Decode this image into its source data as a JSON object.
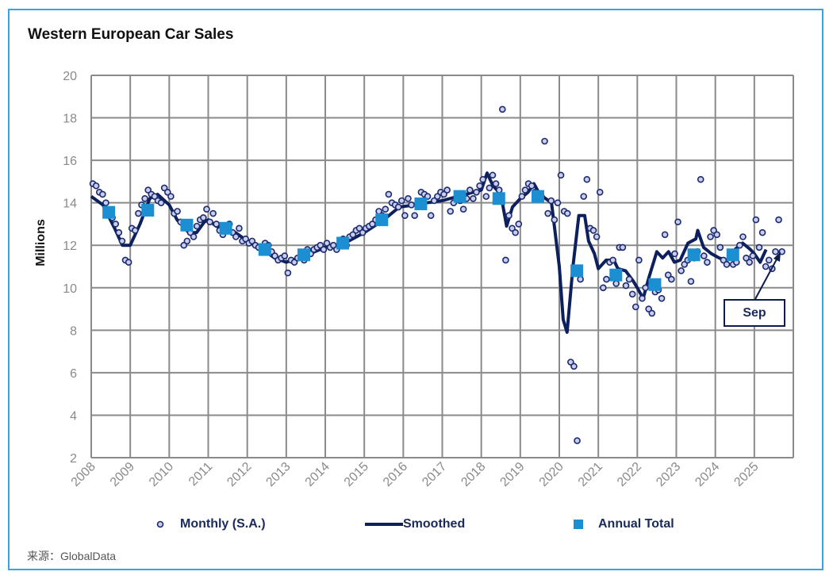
{
  "chart_data": {
    "type": "line",
    "title": "Western European Car Sales",
    "ylabel": "Millions",
    "xlabel": "",
    "ylim": [
      2,
      20
    ],
    "yticks": [
      2,
      4,
      6,
      8,
      10,
      12,
      14,
      16,
      18,
      20
    ],
    "xlim": [
      2008,
      2026
    ],
    "xticks": [
      "2008",
      "2009",
      "2010",
      "2011",
      "2012",
      "2013",
      "2014",
      "2015",
      "2016",
      "2017",
      "2018",
      "2019",
      "2020",
      "2021",
      "2022",
      "2023",
      "2024",
      "2025"
    ],
    "grid": true,
    "legend_placement": "bottom",
    "annotation": "Sep",
    "source": "来源：GlobalData",
    "colors": {
      "monthly": "#1b2a6b",
      "smoothed": "#0d1f5c",
      "annual": "#1b8fd2",
      "frame": "#3ba3dc",
      "grid": "#8a8a8a"
    },
    "series": [
      {
        "name": "Monthly (S.A.)",
        "kind": "scatter",
        "start_year": 2008,
        "values_by_year": [
          [
            14.9,
            14.8,
            14.5,
            14.4,
            14.0,
            13.6,
            13.3,
            13.0,
            12.6,
            12.2,
            11.3,
            11.2
          ],
          [
            12.8,
            12.7,
            13.5,
            13.9,
            14.2,
            14.6,
            14.4,
            14.3,
            14.1,
            14.0,
            14.7,
            14.5
          ],
          [
            14.3,
            13.5,
            13.6,
            13.1,
            12.0,
            12.2,
            12.6,
            12.4,
            12.9,
            13.2,
            13.3,
            13.7
          ],
          [
            13.1,
            13.5,
            13.0,
            12.7,
            12.5,
            12.8,
            13.0,
            12.6,
            12.4,
            12.8,
            12.2,
            12.3
          ],
          [
            12.1,
            12.2,
            12.0,
            11.9,
            11.9,
            12.1,
            12.0,
            11.7,
            11.5,
            11.3,
            11.4,
            11.5
          ],
          [
            10.7,
            11.3,
            11.2,
            11.4,
            11.6,
            11.3,
            11.8,
            11.6,
            11.8,
            11.9,
            12.0,
            11.8
          ],
          [
            12.1,
            11.9,
            12.0,
            11.8,
            12.1,
            12.3,
            12.0,
            12.4,
            12.5,
            12.7,
            12.8,
            12.6
          ],
          [
            12.8,
            12.9,
            13.0,
            13.2,
            13.6,
            13.4,
            13.7,
            14.4,
            14.0,
            13.9,
            13.8,
            14.1
          ],
          [
            13.4,
            14.2,
            13.9,
            13.4,
            14.0,
            14.5,
            14.4,
            14.3,
            13.4,
            14.1,
            14.3,
            14.5
          ],
          [
            14.4,
            14.6,
            13.6,
            14.0,
            14.3,
            14.1,
            13.7,
            14.2,
            14.6,
            14.2,
            14.5,
            14.8
          ],
          [
            15.1,
            14.3,
            14.7,
            15.3,
            14.9,
            14.6,
            18.4,
            11.3,
            13.4,
            12.8,
            12.6,
            13.0
          ],
          [
            14.3,
            14.6,
            14.9,
            14.8,
            14.5,
            14.2,
            14.3,
            16.9,
            13.5,
            14.1,
            13.2,
            14.0
          ],
          [
            15.3,
            13.6,
            13.5,
            6.5,
            6.3,
            2.8,
            10.4,
            14.3,
            15.1,
            12.8,
            12.7,
            12.4
          ],
          [
            14.5,
            10.0,
            10.4,
            11.2,
            11.3,
            10.2,
            11.9,
            11.9,
            10.1,
            10.4,
            9.7,
            9.1
          ],
          [
            11.3,
            9.5,
            10.0,
            9.0,
            8.8,
            9.8,
            9.9,
            9.5,
            12.5,
            10.6,
            10.4,
            11.6
          ],
          [
            13.1,
            10.8,
            11.1,
            11.3,
            10.3,
            11.4,
            11.7,
            15.1,
            11.5,
            11.2,
            12.4,
            12.7
          ],
          [
            12.5,
            11.9,
            11.3,
            11.1,
            11.5,
            11.1,
            11.2,
            12.0,
            12.4,
            11.4,
            11.2,
            11.5
          ],
          [
            13.2,
            11.9,
            12.6,
            11.0,
            11.3,
            10.9,
            11.7,
            13.2,
            11.7
          ]
        ]
      },
      {
        "name": "Smoothed",
        "kind": "line",
        "points": [
          [
            2008.0,
            14.3
          ],
          [
            2008.3,
            13.9
          ],
          [
            2008.6,
            12.8
          ],
          [
            2008.8,
            12.0
          ],
          [
            2009.0,
            12.0
          ],
          [
            2009.25,
            13.0
          ],
          [
            2009.5,
            14.2
          ],
          [
            2009.7,
            14.4
          ],
          [
            2010.0,
            13.9
          ],
          [
            2010.2,
            13.2
          ],
          [
            2010.5,
            12.6
          ],
          [
            2010.7,
            12.6
          ],
          [
            2010.9,
            13.1
          ],
          [
            2011.0,
            13.2
          ],
          [
            2011.2,
            12.9
          ],
          [
            2011.4,
            12.8
          ],
          [
            2011.7,
            12.6
          ],
          [
            2012.0,
            12.2
          ],
          [
            2012.4,
            11.8
          ],
          [
            2012.7,
            11.4
          ],
          [
            2013.0,
            11.2
          ],
          [
            2013.3,
            11.4
          ],
          [
            2013.6,
            11.6
          ],
          [
            2014.0,
            11.9
          ],
          [
            2014.5,
            12.1
          ],
          [
            2015.0,
            12.6
          ],
          [
            2015.5,
            13.2
          ],
          [
            2015.9,
            13.8
          ],
          [
            2016.3,
            13.9
          ],
          [
            2016.6,
            14.0
          ],
          [
            2017.0,
            14.1
          ],
          [
            2017.4,
            14.3
          ],
          [
            2017.8,
            14.5
          ],
          [
            2018.0,
            14.6
          ],
          [
            2018.15,
            15.4
          ],
          [
            2018.3,
            14.8
          ],
          [
            2018.5,
            14.4
          ],
          [
            2018.65,
            12.9
          ],
          [
            2018.8,
            13.8
          ],
          [
            2019.0,
            14.2
          ],
          [
            2019.2,
            14.5
          ],
          [
            2019.35,
            14.9
          ],
          [
            2019.5,
            14.4
          ],
          [
            2019.8,
            14.0
          ],
          [
            2020.0,
            11.0
          ],
          [
            2020.1,
            8.5
          ],
          [
            2020.2,
            7.9
          ],
          [
            2020.35,
            11.0
          ],
          [
            2020.5,
            13.4
          ],
          [
            2020.65,
            13.4
          ],
          [
            2020.75,
            12.2
          ],
          [
            2020.9,
            11.6
          ],
          [
            2021.0,
            10.9
          ],
          [
            2021.2,
            11.3
          ],
          [
            2021.4,
            11.3
          ],
          [
            2021.5,
            10.9
          ],
          [
            2021.7,
            10.8
          ],
          [
            2021.9,
            10.3
          ],
          [
            2022.0,
            10.0
          ],
          [
            2022.15,
            9.5
          ],
          [
            2022.3,
            10.5
          ],
          [
            2022.5,
            11.7
          ],
          [
            2022.65,
            11.4
          ],
          [
            2022.8,
            11.7
          ],
          [
            2022.95,
            11.2
          ],
          [
            2023.1,
            11.3
          ],
          [
            2023.3,
            12.1
          ],
          [
            2023.5,
            12.3
          ],
          [
            2023.55,
            12.7
          ],
          [
            2023.7,
            11.9
          ],
          [
            2023.9,
            11.6
          ],
          [
            2024.1,
            11.4
          ],
          [
            2024.3,
            11.3
          ],
          [
            2024.5,
            11.8
          ],
          [
            2024.7,
            12.1
          ],
          [
            2024.9,
            11.8
          ],
          [
            2025.0,
            11.6
          ],
          [
            2025.15,
            11.2
          ],
          [
            2025.3,
            11.8
          ]
        ]
      },
      {
        "name": "Annual Total",
        "kind": "marker",
        "categories": [
          "2008",
          "2009",
          "2010",
          "2011",
          "2012",
          "2013",
          "2014",
          "2015",
          "2016",
          "2017",
          "2018",
          "2019",
          "2020",
          "2021",
          "2022",
          "2023",
          "2024"
        ],
        "values": [
          13.55,
          13.65,
          12.95,
          12.8,
          11.8,
          11.55,
          12.1,
          13.2,
          13.95,
          14.3,
          14.2,
          14.3,
          10.8,
          10.6,
          10.15,
          11.55,
          11.55
        ]
      }
    ]
  }
}
